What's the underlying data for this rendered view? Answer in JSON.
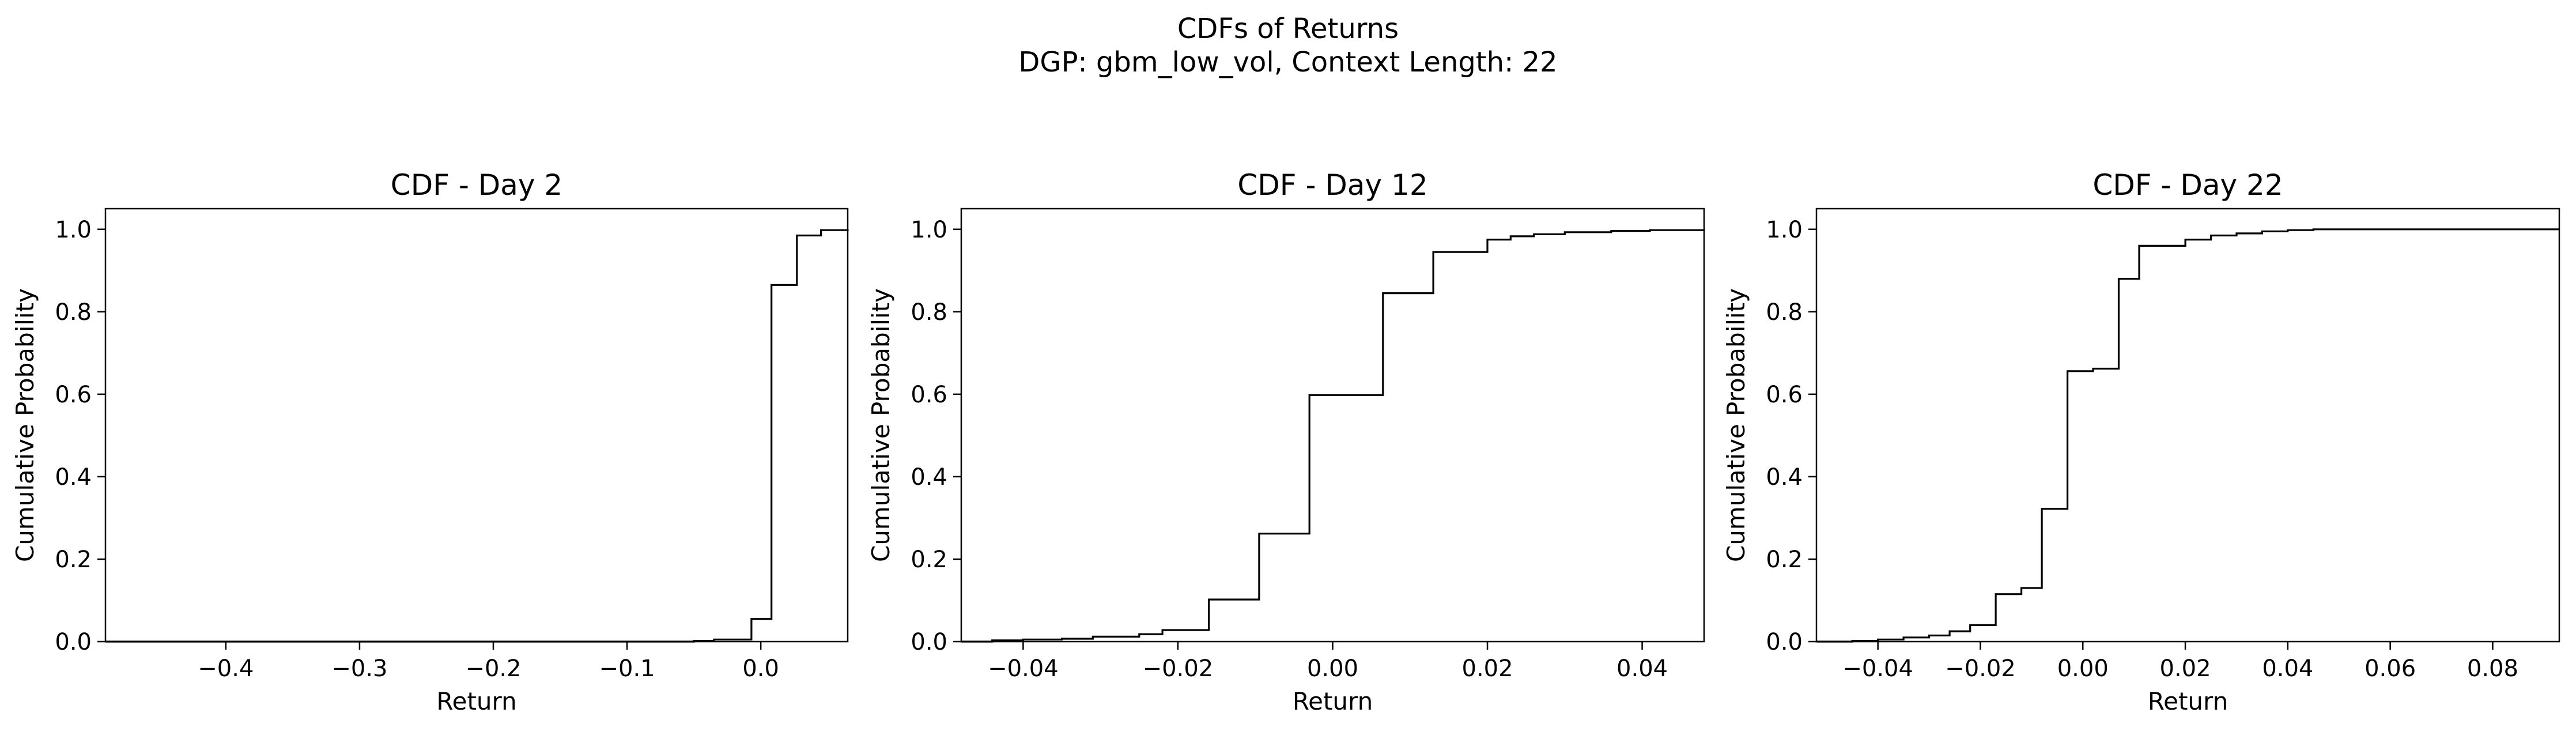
{
  "figure": {
    "title": "CDFs of Returns",
    "subtitle": "DGP: gbm_low_vol, Context Length: 22"
  },
  "chart_data": [
    {
      "type": "line",
      "step": "post",
      "title": "CDF - Day 2",
      "xlabel": "Return",
      "ylabel": "Cumulative Probability",
      "xlim": [
        -0.49,
        0.065
      ],
      "ylim": [
        0,
        1.05
      ],
      "xticks": [
        -0.4,
        -0.3,
        -0.2,
        -0.1,
        0.0
      ],
      "xtick_labels": [
        "−0.4",
        "−0.3",
        "−0.2",
        "−0.1",
        "0.0"
      ],
      "yticks": [
        0.0,
        0.2,
        0.4,
        0.6,
        0.8,
        1.0
      ],
      "ytick_labels": [
        "0.0",
        "0.2",
        "0.4",
        "0.6",
        "0.8",
        "1.0"
      ],
      "grid": false,
      "color": "#000000",
      "x": [
        -0.49,
        -0.05,
        -0.035,
        -0.007,
        0.008,
        0.027,
        0.045,
        0.065
      ],
      "y": [
        0.0,
        0.002,
        0.005,
        0.055,
        0.865,
        0.985,
        0.998,
        1.0
      ]
    },
    {
      "type": "line",
      "step": "post",
      "title": "CDF - Day 12",
      "xlabel": "Return",
      "ylabel": "Cumulative Probability",
      "xlim": [
        -0.048,
        0.048
      ],
      "ylim": [
        0,
        1.05
      ],
      "xticks": [
        -0.04,
        -0.02,
        0.0,
        0.02,
        0.04
      ],
      "xtick_labels": [
        "−0.04",
        "−0.02",
        "0.00",
        "0.02",
        "0.04"
      ],
      "yticks": [
        0.0,
        0.2,
        0.4,
        0.6,
        0.8,
        1.0
      ],
      "ytick_labels": [
        "0.0",
        "0.2",
        "0.4",
        "0.6",
        "0.8",
        "1.0"
      ],
      "grid": false,
      "color": "#000000",
      "x": [
        -0.048,
        -0.044,
        -0.04,
        -0.035,
        -0.031,
        -0.025,
        -0.022,
        -0.016,
        -0.0095,
        -0.003,
        0.0065,
        0.013,
        0.02,
        0.023,
        0.026,
        0.03,
        0.036,
        0.041,
        0.048
      ],
      "y": [
        0.0,
        0.003,
        0.005,
        0.007,
        0.012,
        0.018,
        0.028,
        0.102,
        0.262,
        0.598,
        0.845,
        0.945,
        0.975,
        0.983,
        0.988,
        0.993,
        0.996,
        0.998,
        1.0
      ]
    },
    {
      "type": "line",
      "step": "post",
      "title": "CDF - Day 22",
      "xlabel": "Return",
      "ylabel": "Cumulative Probability",
      "xlim": [
        -0.052,
        0.093
      ],
      "ylim": [
        0,
        1.05
      ],
      "xticks": [
        -0.04,
        -0.02,
        0.0,
        0.02,
        0.04,
        0.06,
        0.08
      ],
      "xtick_labels": [
        "−0.04",
        "−0.02",
        "0.00",
        "0.02",
        "0.04",
        "0.06",
        "0.08"
      ],
      "yticks": [
        0.0,
        0.2,
        0.4,
        0.6,
        0.8,
        1.0
      ],
      "ytick_labels": [
        "0.0",
        "0.2",
        "0.4",
        "0.6",
        "0.8",
        "1.0"
      ],
      "grid": false,
      "color": "#000000",
      "x": [
        -0.052,
        -0.045,
        -0.04,
        -0.035,
        -0.03,
        -0.026,
        -0.022,
        -0.017,
        -0.012,
        -0.008,
        -0.003,
        0.002,
        0.007,
        0.011,
        0.02,
        0.025,
        0.03,
        0.035,
        0.04,
        0.045,
        0.093
      ],
      "y": [
        0.0,
        0.002,
        0.005,
        0.01,
        0.015,
        0.025,
        0.04,
        0.115,
        0.13,
        0.322,
        0.656,
        0.662,
        0.88,
        0.96,
        0.975,
        0.985,
        0.99,
        0.995,
        0.998,
        1.0,
        1.0
      ]
    }
  ]
}
